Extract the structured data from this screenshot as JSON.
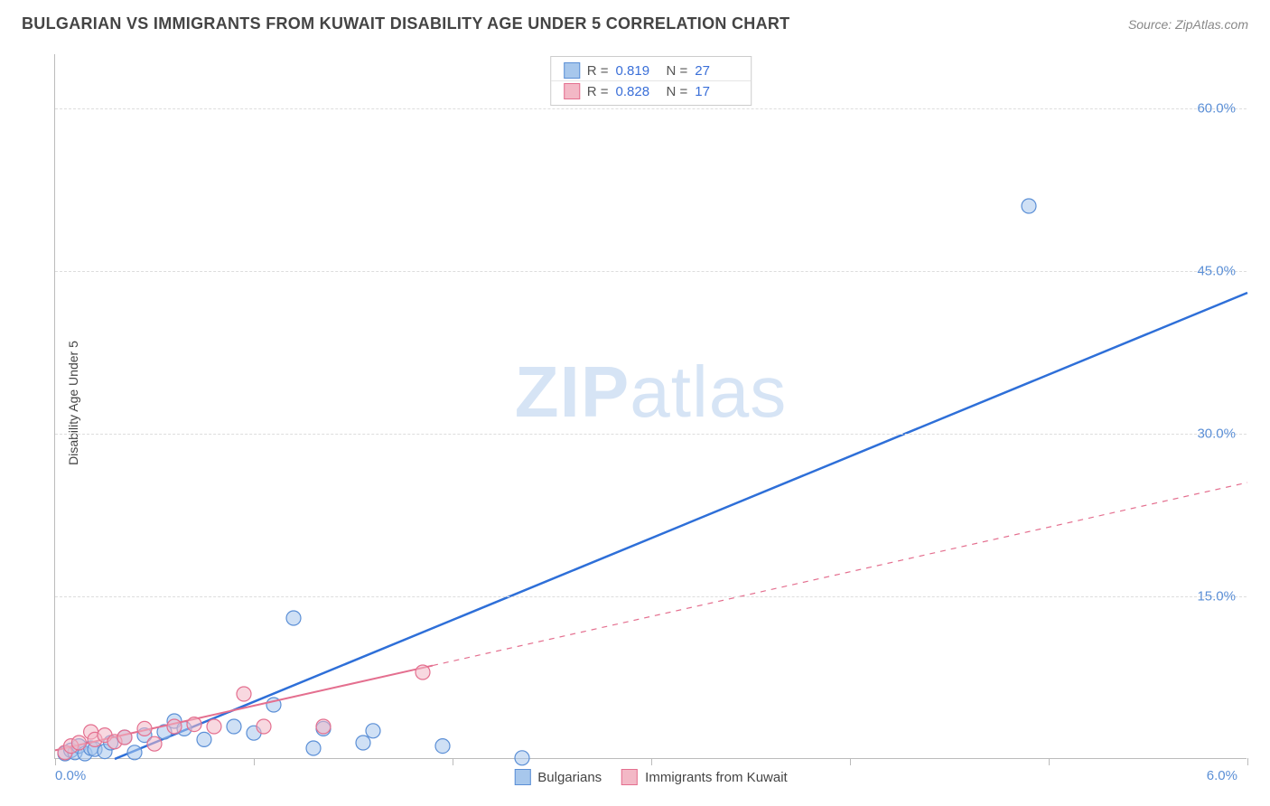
{
  "header": {
    "title": "BULGARIAN VS IMMIGRANTS FROM KUWAIT DISABILITY AGE UNDER 5 CORRELATION CHART",
    "source_prefix": "Source: ",
    "source_name": "ZipAtlas.com"
  },
  "watermark": {
    "zip": "ZIP",
    "atlas": "atlas"
  },
  "chart": {
    "type": "scatter",
    "y_axis_label": "Disability Age Under 5",
    "background_color": "#ffffff",
    "grid_color": "#dddddd",
    "axis_color": "#bbbbbb",
    "tick_label_color": "#5b8fd6",
    "xlim": [
      0.0,
      6.0
    ],
    "ylim": [
      0.0,
      65.0
    ],
    "x_ticks": [
      0.0,
      1.0,
      2.0,
      3.0,
      4.0,
      5.0,
      6.0
    ],
    "x_tick_labels": {
      "origin": "0.0%",
      "max": "6.0%"
    },
    "y_gridlines": [
      15.0,
      30.0,
      45.0,
      60.0
    ],
    "y_tick_labels": [
      "15.0%",
      "30.0%",
      "45.0%",
      "60.0%"
    ],
    "marker_radius": 8,
    "marker_opacity": 0.55,
    "series": [
      {
        "id": "bulgarians",
        "label": "Bulgarians",
        "color_fill": "#a7c7ec",
        "color_stroke": "#5b8fd6",
        "r_value": "0.819",
        "n_value": "27",
        "trend": {
          "points": [
            [
              0.3,
              0.0
            ],
            [
              6.0,
              43.0
            ]
          ],
          "dash_after_x": null,
          "stroke_width": 2.5,
          "color": "#2e6fd8"
        },
        "points": [
          [
            0.05,
            0.5
          ],
          [
            0.08,
            0.8
          ],
          [
            0.1,
            0.6
          ],
          [
            0.12,
            1.2
          ],
          [
            0.15,
            0.5
          ],
          [
            0.18,
            1.0
          ],
          [
            0.2,
            0.9
          ],
          [
            0.25,
            0.7
          ],
          [
            0.28,
            1.5
          ],
          [
            0.35,
            2.0
          ],
          [
            0.4,
            0.6
          ],
          [
            0.45,
            2.2
          ],
          [
            0.55,
            2.5
          ],
          [
            0.6,
            3.5
          ],
          [
            0.65,
            2.8
          ],
          [
            0.75,
            1.8
          ],
          [
            0.9,
            3.0
          ],
          [
            1.0,
            2.4
          ],
          [
            1.1,
            5.0
          ],
          [
            1.2,
            13.0
          ],
          [
            1.3,
            1.0
          ],
          [
            1.35,
            2.8
          ],
          [
            1.55,
            1.5
          ],
          [
            1.6,
            2.6
          ],
          [
            1.95,
            1.2
          ],
          [
            2.35,
            0.1
          ],
          [
            4.9,
            51.0
          ]
        ]
      },
      {
        "id": "kuwait",
        "label": "Immigrants from Kuwait",
        "color_fill": "#f3b8c6",
        "color_stroke": "#e46f8f",
        "r_value": "0.828",
        "n_value": "17",
        "trend": {
          "points": [
            [
              0.0,
              0.8
            ],
            [
              6.0,
              25.5
            ]
          ],
          "dash_after_x": 1.9,
          "stroke_width": 2,
          "color": "#e46f8f"
        },
        "points": [
          [
            0.05,
            0.6
          ],
          [
            0.08,
            1.2
          ],
          [
            0.12,
            1.5
          ],
          [
            0.18,
            2.5
          ],
          [
            0.2,
            1.8
          ],
          [
            0.25,
            2.2
          ],
          [
            0.3,
            1.6
          ],
          [
            0.35,
            2.0
          ],
          [
            0.45,
            2.8
          ],
          [
            0.5,
            1.4
          ],
          [
            0.6,
            3.0
          ],
          [
            0.7,
            3.2
          ],
          [
            0.8,
            3.0
          ],
          [
            0.95,
            6.0
          ],
          [
            1.05,
            3.0
          ],
          [
            1.35,
            3.0
          ],
          [
            1.85,
            8.0
          ]
        ]
      }
    ],
    "legend_top": {
      "r_label": "R  =",
      "n_label": "N  ="
    }
  }
}
